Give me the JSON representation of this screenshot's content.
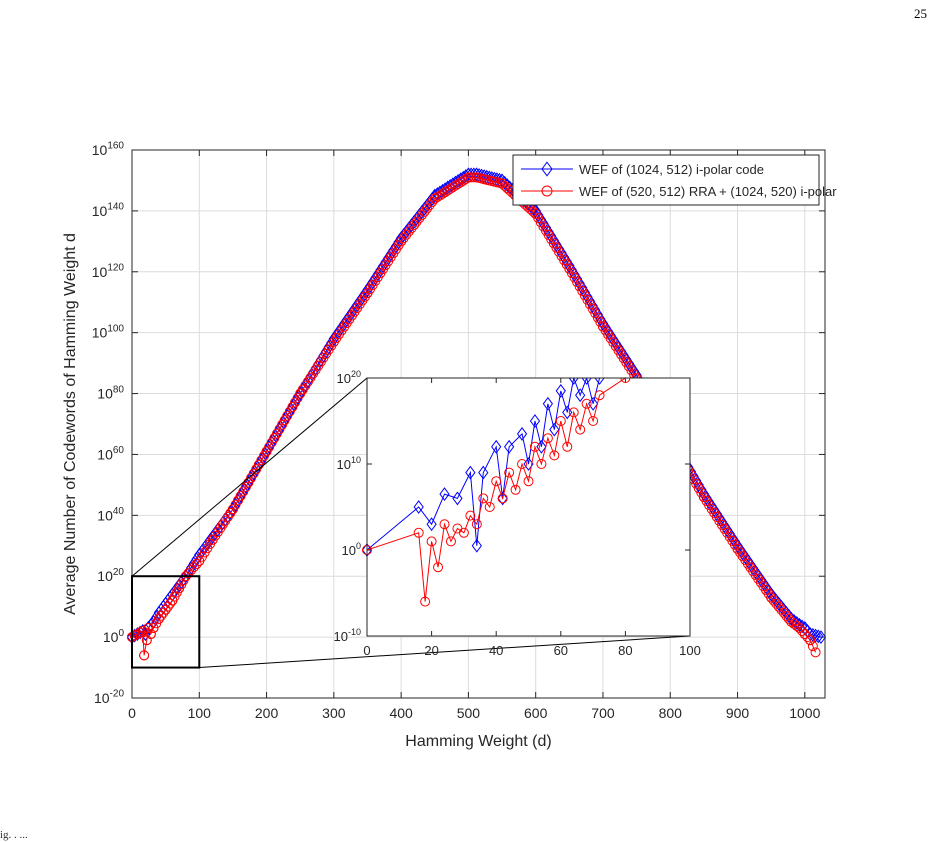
{
  "page": {
    "page_number": "25",
    "caption": "ig. . ..."
  },
  "chart_data": [
    {
      "type": "line",
      "yscale": "log",
      "xlabel": "Hamming Weight (d)",
      "ylabel": "Average Number of Codewords of Hamming Weight d",
      "xlim": [
        0,
        1030
      ],
      "ylim_exponent": [
        -20,
        160
      ],
      "x_ticks": [
        0,
        100,
        200,
        300,
        400,
        500,
        600,
        700,
        800,
        900,
        1000
      ],
      "y_tick_exponents": [
        -20,
        0,
        20,
        40,
        60,
        80,
        100,
        120,
        140,
        160
      ],
      "grid": true,
      "legend_placement": "top-right",
      "series": [
        {
          "name": "WEF of (1024, 512) i-polar code",
          "color": "#0000ff",
          "marker": "diamond",
          "x": [
            0,
            16,
            20,
            24,
            32,
            40,
            50,
            60,
            70,
            80,
            100,
            120,
            150,
            200,
            250,
            300,
            350,
            400,
            450,
            500,
            512,
            550,
            600,
            650,
            700,
            750,
            800,
            850,
            900,
            950,
            980,
            992,
            1000,
            1008,
            1024
          ],
          "log10_y": [
            0,
            2,
            1,
            3,
            5,
            8,
            11,
            14,
            17,
            20,
            27,
            33,
            42,
            61,
            80,
            98,
            114,
            131,
            145,
            152,
            152,
            150,
            140,
            122,
            103,
            86,
            66,
            47,
            30,
            14,
            6,
            4,
            3,
            1,
            0
          ]
        },
        {
          "name": "WEF of (520, 512) RRA + (1024, 520) i-polar",
          "color": "#ff0000",
          "marker": "circle",
          "x": [
            0,
            16,
            18,
            22,
            24,
            28,
            32,
            40,
            50,
            60,
            70,
            80,
            100,
            120,
            150,
            200,
            250,
            300,
            350,
            400,
            450,
            500,
            512,
            550,
            600,
            650,
            700,
            750,
            800,
            850,
            900,
            950,
            980,
            992,
            1000,
            1008,
            1016
          ],
          "log10_y": [
            0,
            2,
            -6,
            -1,
            3,
            1,
            3,
            6,
            9,
            12,
            16,
            20,
            25,
            32,
            42,
            61,
            80,
            97,
            113,
            130,
            144,
            151,
            151,
            149,
            139,
            121,
            102,
            85,
            65,
            46,
            29,
            13,
            5,
            3,
            1,
            -1,
            -5
          ]
        }
      ]
    },
    {
      "type": "line",
      "yscale": "log",
      "xlim": [
        0,
        100
      ],
      "ylim_exponent": [
        -10,
        20
      ],
      "x_ticks": [
        0,
        20,
        40,
        60,
        80,
        100
      ],
      "y_tick_exponents": [
        -10,
        0,
        10,
        20
      ],
      "grid": false,
      "series": [
        {
          "color": "#0000ff",
          "marker": "diamond",
          "x": [
            0,
            16,
            20,
            24,
            28,
            32,
            34,
            36,
            40,
            42,
            44,
            48,
            50,
            52,
            54,
            56,
            58,
            60,
            62,
            64,
            66,
            68,
            70,
            72
          ],
          "log10_y": [
            0,
            5,
            3,
            6.5,
            6,
            9,
            0.5,
            9,
            12,
            6,
            12,
            13.5,
            10,
            15,
            12,
            17,
            14,
            18.5,
            16,
            20,
            18,
            20,
            17,
            20
          ]
        },
        {
          "color": "#ff0000",
          "marker": "circle",
          "x": [
            0,
            16,
            18,
            20,
            22,
            24,
            26,
            28,
            30,
            32,
            34,
            36,
            38,
            40,
            42,
            44,
            46,
            48,
            50,
            52,
            54,
            56,
            58,
            60,
            62,
            64,
            66,
            68,
            70,
            72,
            80
          ],
          "log10_y": [
            0,
            2,
            -6,
            1,
            -2,
            3,
            1,
            2.5,
            2,
            4,
            3,
            6,
            5,
            8,
            6,
            9,
            7,
            10,
            8,
            12,
            10,
            13,
            11,
            15,
            12,
            16,
            14,
            17,
            15,
            18,
            20
          ]
        }
      ]
    }
  ]
}
